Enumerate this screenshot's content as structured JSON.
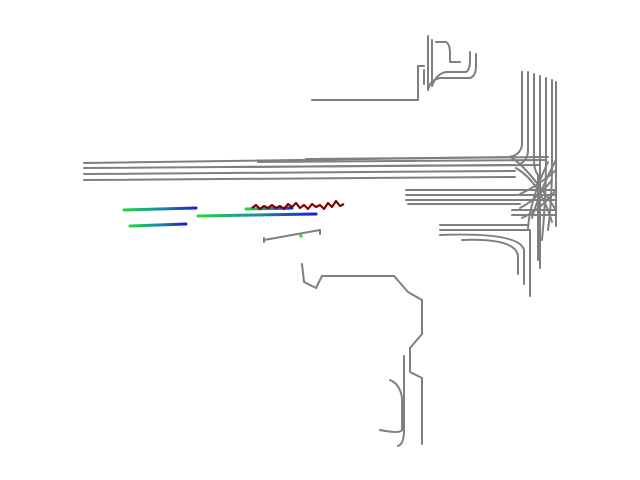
{
  "view": {
    "background": "#ffffff"
  },
  "colors": {
    "lane_line": "#7f7f7f",
    "trajectory_start": "#21d63a",
    "trajectory_end": "#1a1fd0",
    "ground_truth": "#7f0000",
    "agent_marker": "#21d63a"
  },
  "legend": [],
  "labels": []
}
